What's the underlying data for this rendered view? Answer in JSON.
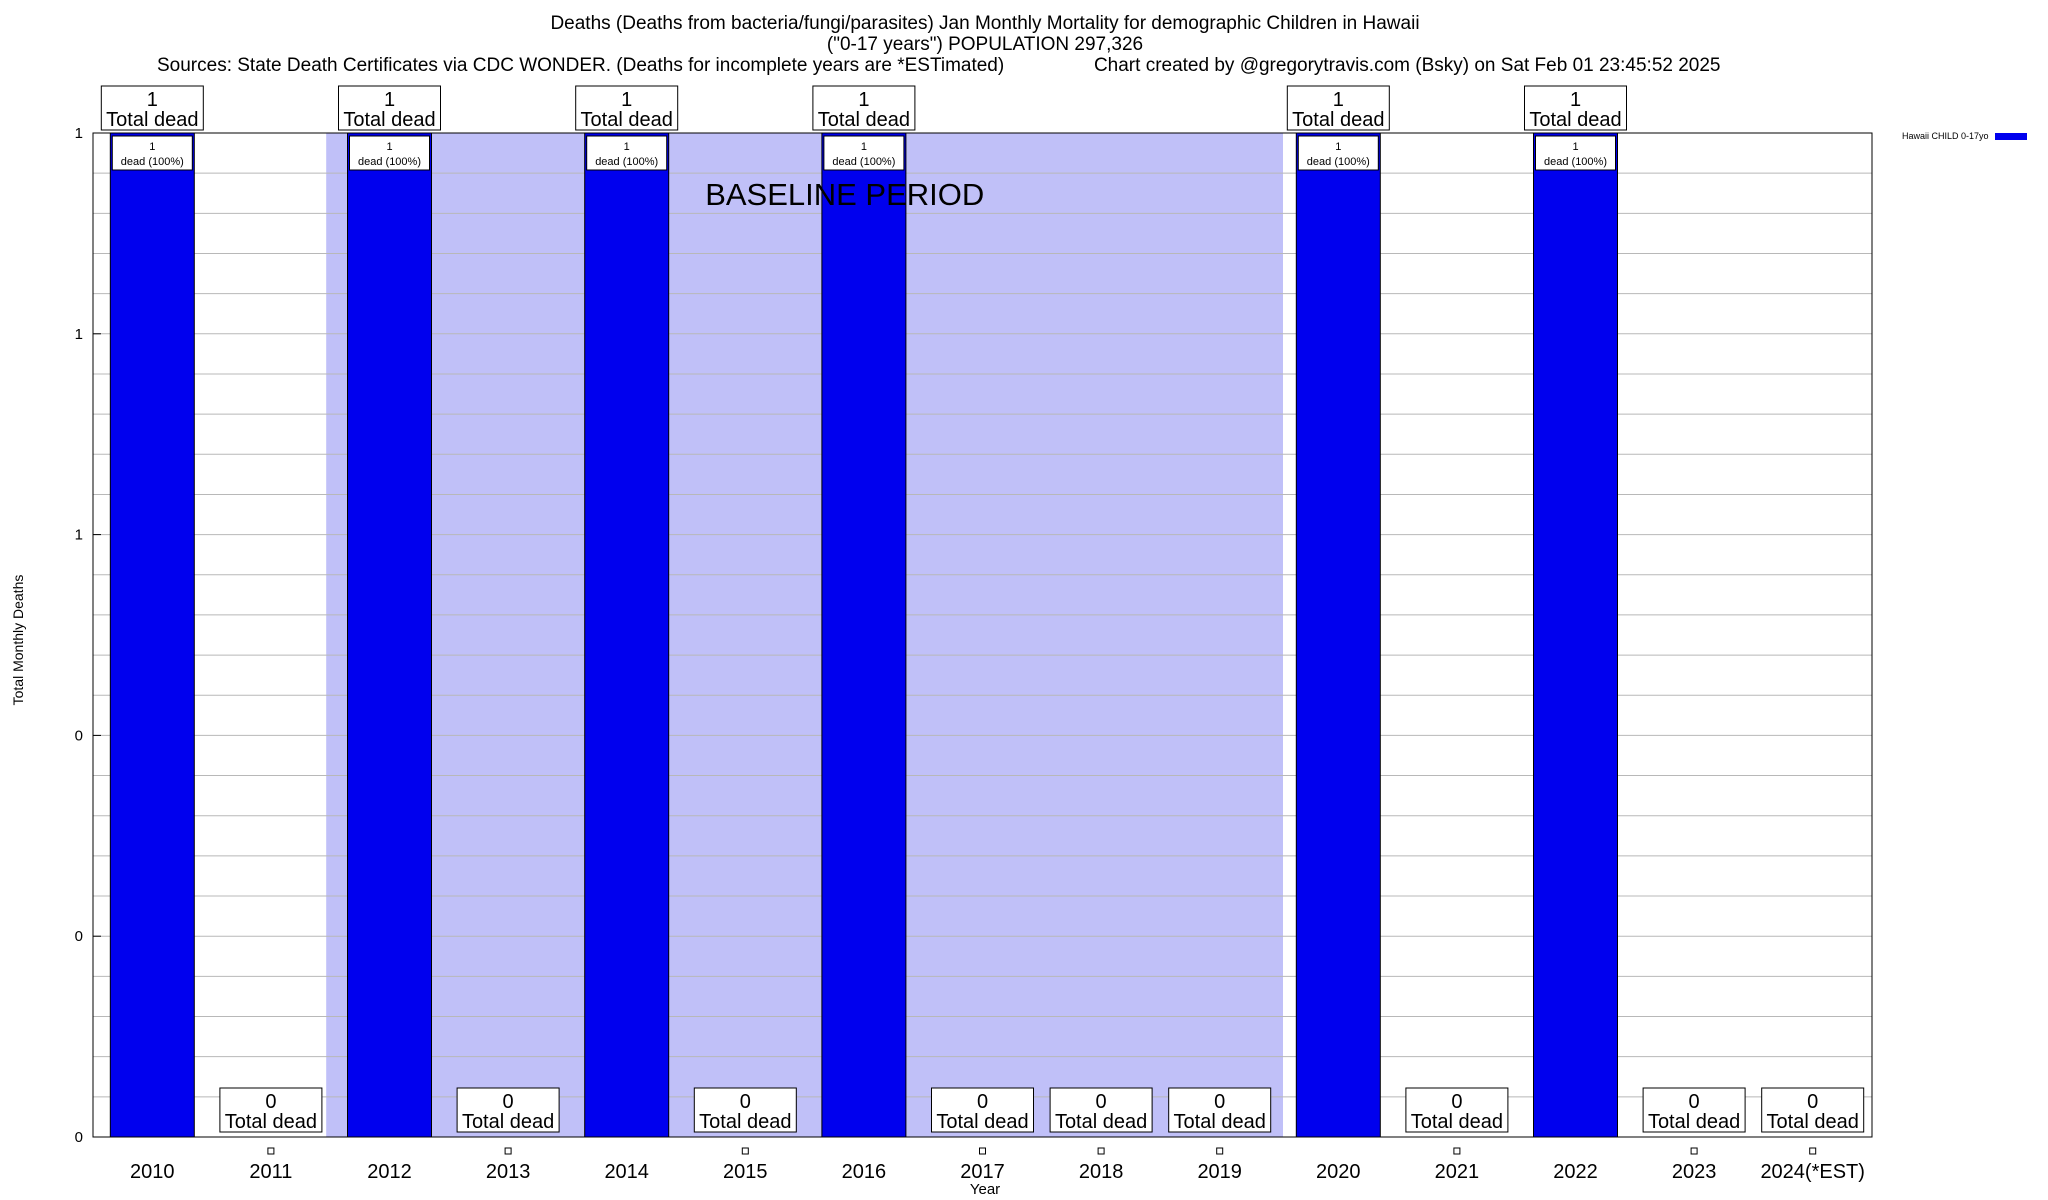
{
  "chart_data": {
    "type": "bar",
    "title": "Deaths (Deaths from bacteria/fungi/parasites) Jan Monthly Mortality for demographic Children in Hawaii",
    "subtitle": "(\"0-17 years\") POPULATION 297,326",
    "sources_text": "Sources: State Death Certificates via CDC WONDER. (Deaths for incomplete years are *ESTimated)",
    "credit_text": "Chart created by @gregorytravis.com (Bsky) on Sat Feb 01 23:45:52 2025",
    "xlabel": "Year",
    "ylabel": "Total Monthly Deaths",
    "categories": [
      "2010",
      "2011",
      "2012",
      "2013",
      "2014",
      "2015",
      "2016",
      "2017",
      "2018",
      "2019",
      "2020",
      "2021",
      "2022",
      "2023",
      "2024(*EST)"
    ],
    "series": [
      {
        "name": "Hawaii CHILD 0-17yo",
        "color": "#0000ee",
        "values": [
          1,
          0,
          1,
          0,
          1,
          0,
          1,
          0,
          0,
          0,
          1,
          0,
          1,
          0,
          0
        ]
      }
    ],
    "ylim": [
      0,
      1
    ],
    "ytick_labels": [
      "0",
      "0",
      "0",
      "1",
      "1",
      "1"
    ],
    "ytick_values": [
      0,
      0.2,
      0.4,
      0.6,
      0.8,
      1.0
    ],
    "total_label_word": "Total dead",
    "bar_inner_label": [
      "1",
      "dead (100%)"
    ],
    "baseline_label": "BASELINE PERIOD",
    "baseline_range": [
      "2012",
      "2019"
    ],
    "baseline_color": "#c0c0f8",
    "grid": true,
    "legend_position": "top-right"
  }
}
